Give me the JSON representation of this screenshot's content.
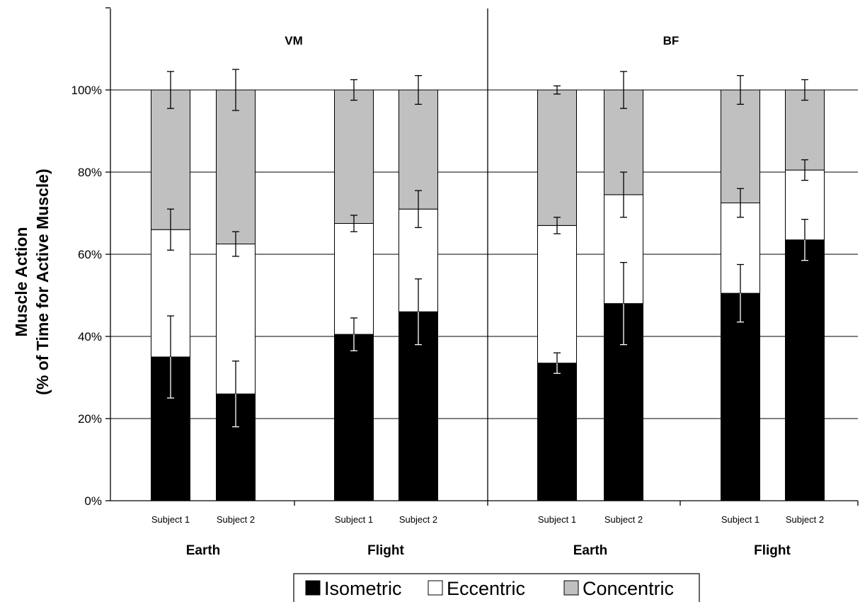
{
  "chart_data": {
    "type": "bar",
    "stacked": true,
    "ylabel_line1": "Muscle Action",
    "ylabel_line2": "(% of Time for Active  Muscle)",
    "ylim": [
      0,
      100
    ],
    "yticks": [
      "0%",
      "20%",
      "40%",
      "60%",
      "80%",
      "100%"
    ],
    "panels": [
      {
        "title": "VM",
        "groups": [
          {
            "label": "Earth",
            "bars": [
              {
                "label": "Subject 1",
                "isometric": 35,
                "eccentric": 31,
                "concentric": 34,
                "err_isometric": 10,
                "err_eccentric": 5,
                "err_concentric": 4.5
              },
              {
                "label": "Subject 2",
                "isometric": 26,
                "eccentric": 36.5,
                "concentric": 37.5,
                "err_isometric": 8,
                "err_eccentric": 3,
                "err_concentric": 5
              }
            ]
          },
          {
            "label": "Flight",
            "bars": [
              {
                "label": "Subject 1",
                "isometric": 40.5,
                "eccentric": 27,
                "concentric": 32.5,
                "err_isometric": 4,
                "err_eccentric": 2,
                "err_concentric": 2.5
              },
              {
                "label": "Subject 2",
                "isometric": 46,
                "eccentric": 25,
                "concentric": 29,
                "err_isometric": 8,
                "err_eccentric": 4.5,
                "err_concentric": 3.5
              }
            ]
          }
        ]
      },
      {
        "title": "BF",
        "groups": [
          {
            "label": "Earth",
            "bars": [
              {
                "label": "Subject 1",
                "isometric": 33.5,
                "eccentric": 33.5,
                "concentric": 33,
                "err_isometric": 2.5,
                "err_eccentric": 2,
                "err_concentric": 1
              },
              {
                "label": "Subject 2",
                "isometric": 48,
                "eccentric": 26.5,
                "concentric": 25.5,
                "err_isometric": 10,
                "err_eccentric": 5.5,
                "err_concentric": 4.5
              }
            ]
          },
          {
            "label": "Flight",
            "bars": [
              {
                "label": "Subject 1",
                "isometric": 50.5,
                "eccentric": 22,
                "concentric": 27.5,
                "err_isometric": 7,
                "err_eccentric": 3.5,
                "err_concentric": 3.5
              },
              {
                "label": "Subject 2",
                "isometric": 63.5,
                "eccentric": 17,
                "concentric": 19.5,
                "err_isometric": 5,
                "err_eccentric": 2.5,
                "err_concentric": 2.5
              }
            ]
          }
        ]
      }
    ],
    "legend": {
      "placement": "bottom-center",
      "items": [
        {
          "name": "Isometric",
          "color": "#000000"
        },
        {
          "name": "Eccentric",
          "color": "#ffffff"
        },
        {
          "name": "Concentric",
          "color": "#c0c0c0"
        }
      ]
    },
    "grid": true
  }
}
